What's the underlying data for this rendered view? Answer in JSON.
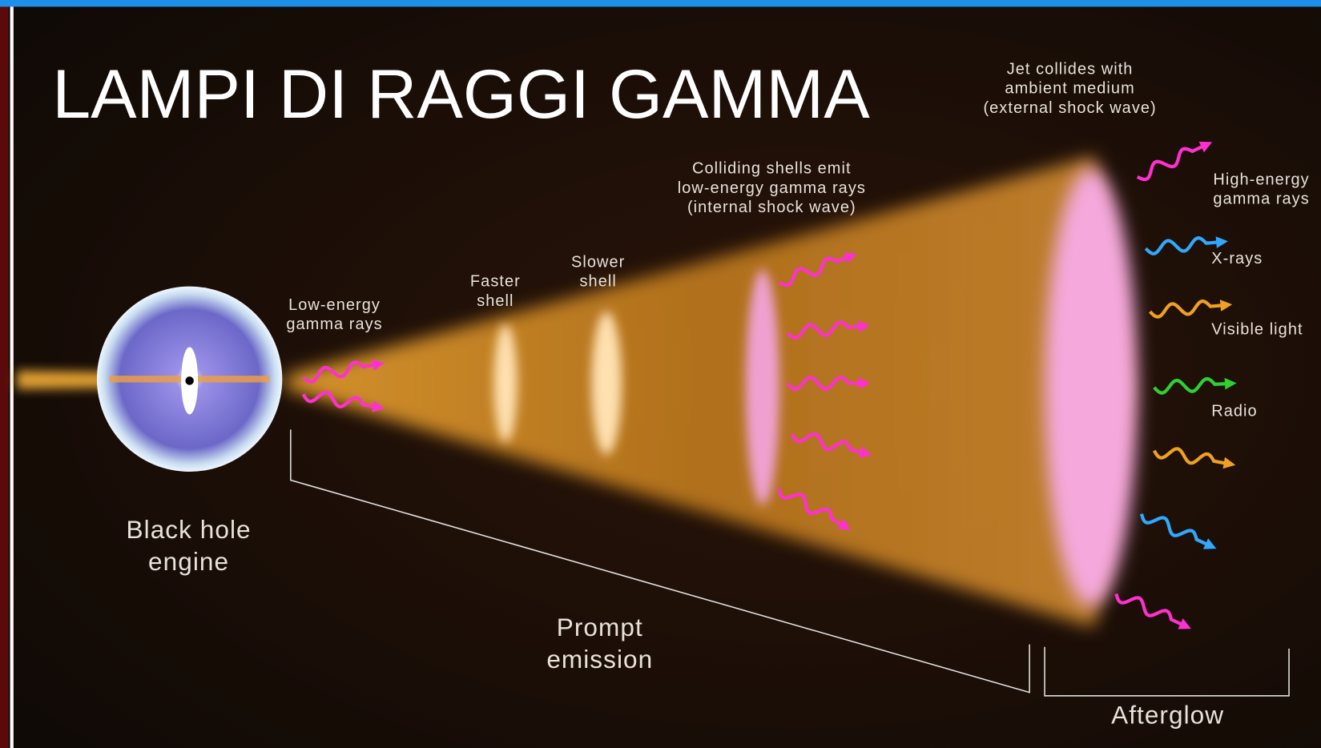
{
  "title": "LAMPI DI RAGGI GAMMA",
  "labels": [
    {
      "lines": [
        "Jet collides with",
        "ambient medium",
        "(external shock wave)"
      ]
    },
    {
      "lines": [
        "Colliding shells emit",
        "low-energy gamma rays",
        "(internal shock wave)"
      ]
    },
    {
      "lines": [
        "Faster",
        "shell"
      ]
    },
    {
      "lines": [
        "Slower",
        "shell"
      ]
    },
    {
      "lines": [
        "Low-energy",
        "gamma rays"
      ]
    },
    {
      "lines": [
        "Black hole",
        "engine"
      ]
    },
    {
      "lines": [
        "Prompt",
        "emission"
      ]
    },
    {
      "lines": [
        "Afterglow"
      ]
    },
    {
      "lines": [
        "High-energy",
        "gamma rays"
      ]
    },
    {
      "lines": [
        "X-rays"
      ]
    },
    {
      "lines": [
        "Visible light"
      ]
    },
    {
      "lines": [
        "Radio"
      ]
    }
  ]
}
